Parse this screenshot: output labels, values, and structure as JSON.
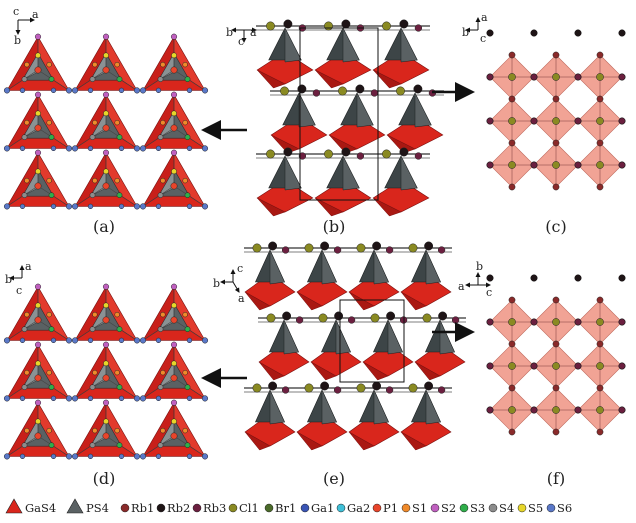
{
  "panels": [
    {
      "id": "a",
      "label": "(a)",
      "axes": {
        "up": "c",
        "right": "a",
        "down": "b"
      }
    },
    {
      "id": "b",
      "label": "(b)",
      "axes": {
        "left": "b",
        "right": "a",
        "down": "c"
      }
    },
    {
      "id": "c",
      "label": "(c)",
      "axes": {
        "left": "b",
        "up": "a",
        "down": "c"
      }
    },
    {
      "id": "d",
      "label": "(d)",
      "axes": {
        "left": "b",
        "up": "a",
        "down": "c"
      }
    },
    {
      "id": "e",
      "label": "(e)",
      "axes": {
        "up": "c",
        "left": "b",
        "down": "a"
      }
    },
    {
      "id": "f",
      "label": "(f)",
      "axes": {
        "left": "a",
        "up": "b",
        "right": "c"
      }
    }
  ],
  "legend": {
    "polyhedra": [
      {
        "label": "GaS4",
        "color": "#d9261c"
      },
      {
        "label": "PS4",
        "color": "#5a6163"
      }
    ],
    "atoms": [
      {
        "label": "Rb1",
        "color": "#8a2a2a"
      },
      {
        "label": "Rb2",
        "color": "#1e1416"
      },
      {
        "label": "Rb3",
        "color": "#6b1f3f"
      },
      {
        "label": "Cl1",
        "color": "#8a8a22"
      },
      {
        "label": "Br1",
        "color": "#4b6b2a"
      },
      {
        "label": "Ga1",
        "color": "#3a55b5"
      },
      {
        "label": "Ga2",
        "color": "#3fc0d8"
      },
      {
        "label": "P1",
        "color": "#e8452b"
      },
      {
        "label": "S1",
        "color": "#f08a2a"
      },
      {
        "label": "S2",
        "color": "#c060c0"
      },
      {
        "label": "S3",
        "color": "#2fae4a"
      },
      {
        "label": "S4",
        "color": "#8c8c8c"
      },
      {
        "label": "S5",
        "color": "#e6d62a"
      },
      {
        "label": "S6",
        "color": "#5a78c8"
      }
    ]
  }
}
